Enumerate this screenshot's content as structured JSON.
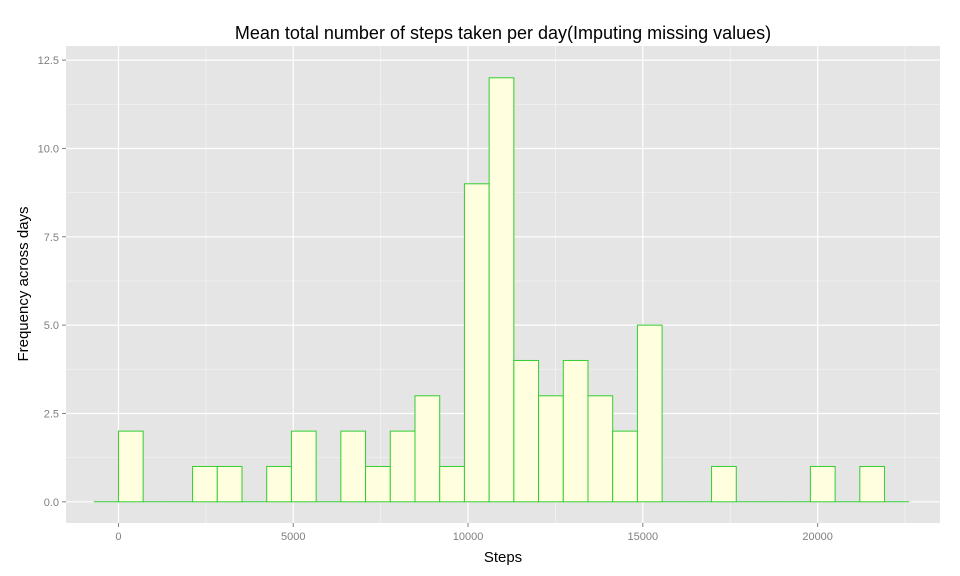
{
  "chart_data": {
    "type": "bar",
    "title": "Mean total number of steps taken per day(Imputing missing values)",
    "xlabel": "Steps",
    "ylabel": "Frequency across days",
    "xlim": [
      -1500,
      23500
    ],
    "ylim": [
      -0.6,
      12.9
    ],
    "x_ticks": [
      0,
      5000,
      10000,
      15000,
      20000
    ],
    "x_tick_labels": [
      "0",
      "5000",
      "10000",
      "15000",
      "20000"
    ],
    "y_ticks": [
      0,
      2.5,
      5,
      7.5,
      10,
      12.5
    ],
    "y_tick_labels": [
      "0.0",
      "2.5",
      "5.0",
      "7.5",
      "10.0",
      "12.5"
    ],
    "bin_width": 706.9,
    "bin_starts": [
      -706.9,
      0,
      706.9,
      1413.8,
      2120.7,
      2827.6,
      3534.5,
      4241.4,
      4948.3,
      5655.2,
      6362.1,
      7069,
      7775.9,
      8482.8,
      9189.7,
      9896.6,
      10603.5,
      11310.4,
      12017.3,
      12724.2,
      13431.1,
      14138,
      14844.9,
      15551.8,
      16258.7,
      16965.6,
      17672.5,
      18379.4,
      19086.3,
      19793.2,
      20500.1,
      21207,
      21913.9
    ],
    "counts": [
      0,
      2,
      0,
      0,
      1,
      1,
      0,
      1,
      2,
      0,
      2,
      1,
      2,
      3,
      1,
      9,
      12,
      4,
      3,
      4,
      3,
      2,
      5,
      0,
      0,
      1,
      0,
      0,
      0,
      1,
      0,
      1,
      0
    ],
    "grid": true,
    "colors": {
      "panel_background": "#e5e5e5",
      "grid_major": "#ffffff",
      "grid_minor": "#f2f2f2",
      "bar_fill": "#ffffe0",
      "bar_outline": "#32cd32",
      "tick_label": "#7f7f7f",
      "tick_mark": "#7f7f7f",
      "text": "#000000"
    }
  }
}
